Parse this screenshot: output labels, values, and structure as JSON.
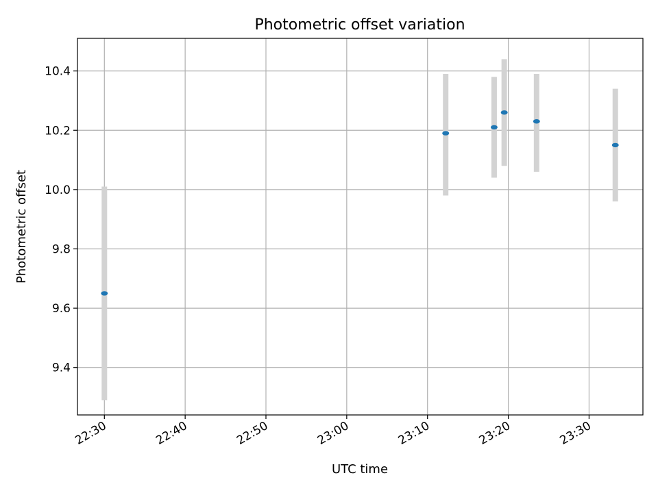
{
  "chart_data": {
    "type": "scatter",
    "title": "Photometric offset variation",
    "xlabel": "UTC time",
    "ylabel": "Photometric offset",
    "x_tick_labels": [
      "22:30",
      "22:40",
      "22:50",
      "23:00",
      "23:10",
      "23:20",
      "23:30"
    ],
    "y_tick_labels": [
      "9.4",
      "9.6",
      "9.8",
      "10.0",
      "10.2",
      "10.4"
    ],
    "x_ticks": [
      "22:30",
      "22:40",
      "22:50",
      "23:00",
      "23:10",
      "23:20",
      "23:30"
    ],
    "y_ticks": [
      9.4,
      9.6,
      9.8,
      10.0,
      10.2,
      10.4
    ],
    "xlim": [
      "22:26:40",
      "23:36:40"
    ],
    "ylim": [
      9.24,
      10.51
    ],
    "grid": true,
    "series": [
      {
        "points": [
          {
            "x": "22:30:00",
            "y": 9.65,
            "err_low": 9.29,
            "err_high": 10.01
          },
          {
            "x": "23:12:15",
            "y": 10.19,
            "err_low": 9.98,
            "err_high": 10.39
          },
          {
            "x": "23:18:15",
            "y": 10.21,
            "err_low": 10.04,
            "err_high": 10.38
          },
          {
            "x": "23:19:30",
            "y": 10.26,
            "err_low": 10.08,
            "err_high": 10.44
          },
          {
            "x": "23:23:30",
            "y": 10.23,
            "err_low": 10.06,
            "err_high": 10.39
          },
          {
            "x": "23:33:15",
            "y": 10.15,
            "err_low": 9.96,
            "err_high": 10.34
          }
        ]
      }
    ],
    "colors": {
      "marker": "#1f77b4",
      "errorbar": "#d3d3d3",
      "grid": "#b0b0b0",
      "axes": "#000000"
    }
  }
}
